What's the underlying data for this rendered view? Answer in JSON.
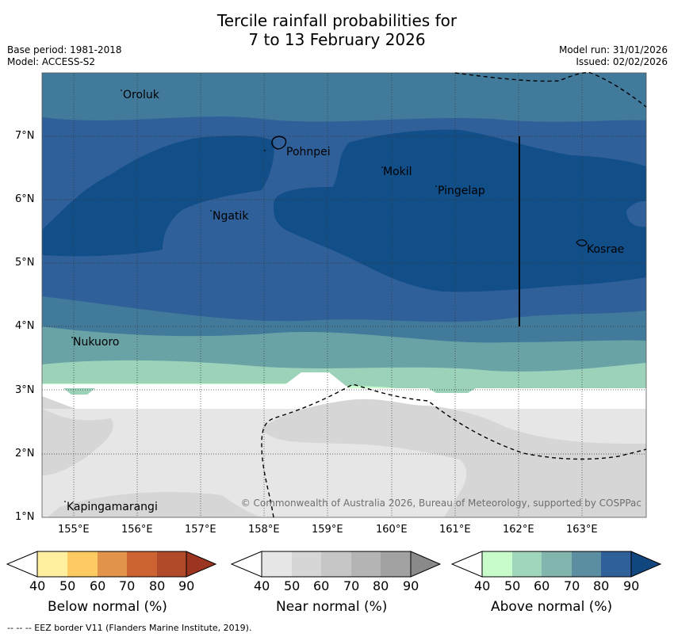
{
  "title": {
    "line1": "Tercile rainfall probabilities for",
    "line2": "7 to 13 February 2026"
  },
  "meta": {
    "base_period": "Base period: 1981-2018",
    "model": "Model: ACCESS-S2",
    "model_run": "Model run: 31/01/2026",
    "issued": "Issued: 02/02/2026"
  },
  "map": {
    "lat_labels": [
      "7°N",
      "6°N",
      "5°N",
      "4°N",
      "3°N",
      "2°N",
      "1°N"
    ],
    "lon_labels": [
      "155°E",
      "156°E",
      "157°E",
      "158°E",
      "159°E",
      "160°E",
      "161°E",
      "162°E",
      "163°E"
    ],
    "places": [
      {
        "name": "Oroluk"
      },
      {
        "name": "Pohnpei"
      },
      {
        "name": "Mokil"
      },
      {
        "name": "Pingelap"
      },
      {
        "name": "Ngatik"
      },
      {
        "name": "Kosrae"
      },
      {
        "name": "Nukuoro"
      },
      {
        "name": "Kapingamarangi"
      }
    ],
    "copyright": "© Commonwealth of Australia 2026, Bureau of Meteorology, supported by COSPPac"
  },
  "colorbars": [
    {
      "name": "below",
      "label": "Below normal (%)",
      "colors": [
        "#fff0a0",
        "#fdcb62",
        "#e2944a",
        "#cd6333",
        "#b04a28",
        "#9c3520"
      ],
      "ticks": [
        "40",
        "50",
        "60",
        "70",
        "80",
        "90"
      ]
    },
    {
      "name": "near",
      "label": "Near normal (%)",
      "colors": [
        "#e6e6e6",
        "#d6d6d6",
        "#c6c6c6",
        "#b4b4b4",
        "#a2a2a2",
        "#8a8a8a"
      ],
      "ticks": [
        "40",
        "50",
        "60",
        "70",
        "80",
        "90"
      ]
    },
    {
      "name": "above",
      "label": "Above normal (%)",
      "colors": [
        "#c8fcca",
        "#a0d6bb",
        "#82b5ad",
        "#5a8ea0",
        "#30609a",
        "#12467e"
      ],
      "ticks": [
        "40",
        "50",
        "60",
        "70",
        "80",
        "90"
      ]
    }
  ],
  "footer": "--  --  -- EEZ border V11 (Flanders Marine Institute, 2019)."
}
